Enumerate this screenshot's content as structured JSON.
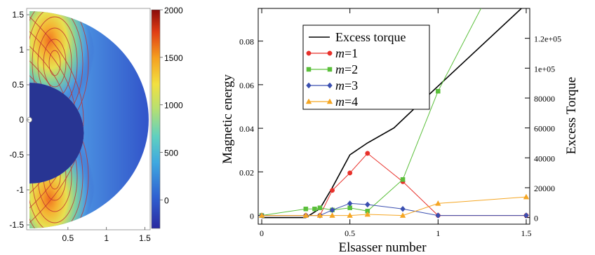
{
  "chart_data": [
    {
      "type": "heatmap",
      "description_hidden": false,
      "xticks": [
        "0.5",
        "1",
        "1.5"
      ],
      "yticks": [
        "1.5",
        "1",
        "0.5",
        "0",
        "-0.5",
        "-1",
        "-1.5"
      ],
      "xlim": [
        0,
        1.55
      ],
      "ylim": [
        -1.55,
        1.55
      ],
      "colorbar": {
        "ticks": [
          "2000",
          "1500",
          "1000",
          "500",
          "0"
        ],
        "range": [
          -300,
          2000
        ],
        "colors": [
          "#2a2aa0",
          "#2f5fd0",
          "#3fa8e0",
          "#5fd0c0",
          "#b8e070",
          "#f2e040",
          "#f5a020",
          "#e03c14",
          "#8a0a0a"
        ]
      },
      "inner_radius": 0.55,
      "outer_radius": 1.55,
      "hot_lobe_center": [
        0.45,
        0.75
      ],
      "streamline_color": "#c03030"
    },
    {
      "type": "line",
      "xlabel": "Elsasser number",
      "ylabel": "Magnetic energy",
      "ylabel2": "Excess Torque",
      "xlim": [
        -0.02,
        1.52
      ],
      "ylim": [
        -0.004,
        0.095
      ],
      "ylim2": [
        -4400,
        140000
      ],
      "xticks": [
        "0",
        "0.5",
        "1",
        "1.5"
      ],
      "yticks": [
        "0",
        "0.02",
        "0.04",
        "0.06",
        "0.08"
      ],
      "yticks2": [
        "0",
        "20000",
        "40000",
        "60000",
        "80000",
        "1e+05",
        "1.2e+05"
      ],
      "legend_position": "upper-left",
      "series": [
        {
          "name": "Excess torque",
          "axis": "right",
          "color": "#000000",
          "marker": "none",
          "x": [
            0,
            0.25,
            0.33,
            0.4,
            0.5,
            0.6,
            0.75,
            1.0,
            1.5
          ],
          "y": [
            0,
            0,
            6000,
            20000,
            42000,
            50000,
            60000,
            88000,
            143000
          ]
        },
        {
          "name": "m=1",
          "axis": "left",
          "color": "#e8302a",
          "marker": "circle",
          "x": [
            0,
            0.25,
            0.33,
            0.4,
            0.5,
            0.6,
            0.8,
            1.0,
            1.5
          ],
          "y": [
            0,
            0,
            0,
            0.0115,
            0.0195,
            0.0285,
            0.0155,
            0,
            0
          ]
        },
        {
          "name": "m=2",
          "axis": "left",
          "color": "#5abf3a",
          "marker": "square",
          "x": [
            0,
            0.25,
            0.3,
            0.33,
            0.4,
            0.5,
            0.6,
            0.8,
            1.0,
            1.5
          ],
          "y": [
            0,
            0.003,
            0.003,
            0.0035,
            0.0025,
            0.0035,
            0.002,
            0.0165,
            0.057,
            0.135
          ]
        },
        {
          "name": "m=3",
          "axis": "left",
          "color": "#3a4fb0",
          "marker": "diamond",
          "x": [
            0,
            0.25,
            0.33,
            0.4,
            0.5,
            0.6,
            0.8,
            1.0,
            1.5
          ],
          "y": [
            0,
            0,
            0,
            0.0025,
            0.0055,
            0.005,
            0.003,
            0,
            0
          ]
        },
        {
          "name": "m=4",
          "axis": "left",
          "color": "#f5a623",
          "marker": "triangle",
          "x": [
            0,
            0.25,
            0.33,
            0.4,
            0.5,
            0.6,
            0.8,
            1.0,
            1.5
          ],
          "y": [
            0,
            0,
            0,
            0,
            0,
            0.0005,
            0,
            0.0055,
            0.0085
          ]
        }
      ]
    }
  ],
  "legend_prefix": "m",
  "legend_labels": [
    "Excess torque",
    "=1",
    "=2",
    "=3",
    "=4"
  ]
}
